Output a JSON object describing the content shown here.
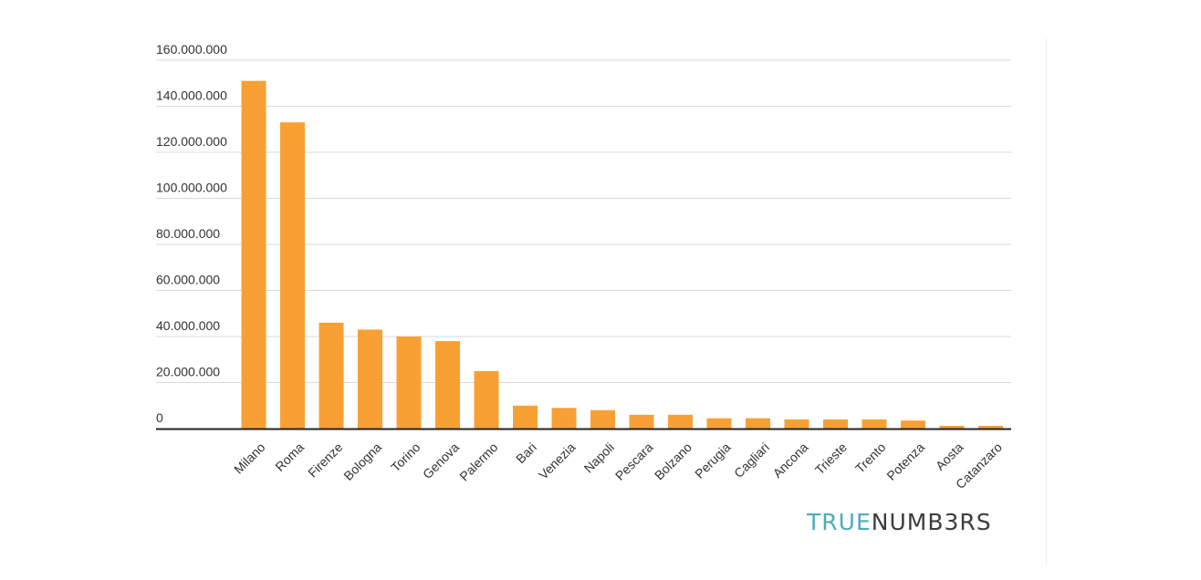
{
  "brand": {
    "part1": "TRUE",
    "part2": "NUMB3RS",
    "color1": "#4aadbb",
    "color2": "#3d3d3d"
  },
  "colors": {
    "bar": "#f9a034",
    "grid": "#d9d9d9",
    "axis": "#222222",
    "text": "#333333"
  },
  "chart_data": {
    "type": "bar",
    "title": "",
    "xlabel": "",
    "ylabel": "",
    "ylim": [
      0,
      160000000
    ],
    "yticks": [
      {
        "value": 0,
        "label": "0"
      },
      {
        "value": 20000000,
        "label": "20.000.000"
      },
      {
        "value": 40000000,
        "label": "40.000.000"
      },
      {
        "value": 60000000,
        "label": "60.000.000"
      },
      {
        "value": 80000000,
        "label": "80.000.000"
      },
      {
        "value": 100000000,
        "label": "100.000.000"
      },
      {
        "value": 120000000,
        "label": "120.000.000"
      },
      {
        "value": 140000000,
        "label": "140.000.000"
      },
      {
        "value": 160000000,
        "label": "160.000.000"
      }
    ],
    "grid": true,
    "legend": "none",
    "categories": [
      "Milano",
      "Roma",
      "Firenze",
      "Bologna",
      "Torino",
      "Genova",
      "Palermo",
      "Bari",
      "Venezia",
      "Napoli",
      "Pescara",
      "Bolzano",
      "Perugia",
      "Cagliari",
      "Ancona",
      "Trieste",
      "Trento",
      "Potenza",
      "Aosta",
      "Catanzaro"
    ],
    "values": [
      151000000,
      133000000,
      46000000,
      43000000,
      40000000,
      38000000,
      25000000,
      10000000,
      9000000,
      8000000,
      6000000,
      6000000,
      4500000,
      4500000,
      4000000,
      4000000,
      4000000,
      3500000,
      1200000,
      1200000
    ]
  }
}
